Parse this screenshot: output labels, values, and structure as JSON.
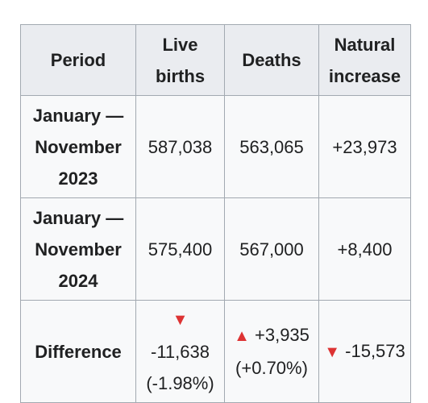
{
  "table": {
    "headers": {
      "period": [
        "Period"
      ],
      "births": [
        "Live",
        "births"
      ],
      "deaths": [
        "Deaths"
      ],
      "natural": [
        "Natural",
        "increase"
      ]
    },
    "rows": [
      {
        "period": [
          "January —",
          "November",
          "2023"
        ],
        "births": "587,038",
        "deaths": "563,065",
        "natural": "+23,973"
      },
      {
        "period": [
          "January —",
          "November",
          "2024"
        ],
        "births": "575,400",
        "deaths": "567,000",
        "natural": "+8,400"
      }
    ],
    "difference": {
      "label": "Difference",
      "births": {
        "arrow": "▼",
        "value": "-11,638",
        "percent": "(-1.98%)"
      },
      "deaths": {
        "arrow": "▲",
        "value": "+3,935",
        "percent": "(+0.70%)"
      },
      "natural": {
        "arrow": "▼",
        "value": "-15,573"
      }
    },
    "colors": {
      "header_bg": "#eaecf0",
      "cell_bg": "#f8f9fa",
      "border": "#a2a9b1",
      "arrow": "#dd3333",
      "text": "#202122"
    }
  }
}
